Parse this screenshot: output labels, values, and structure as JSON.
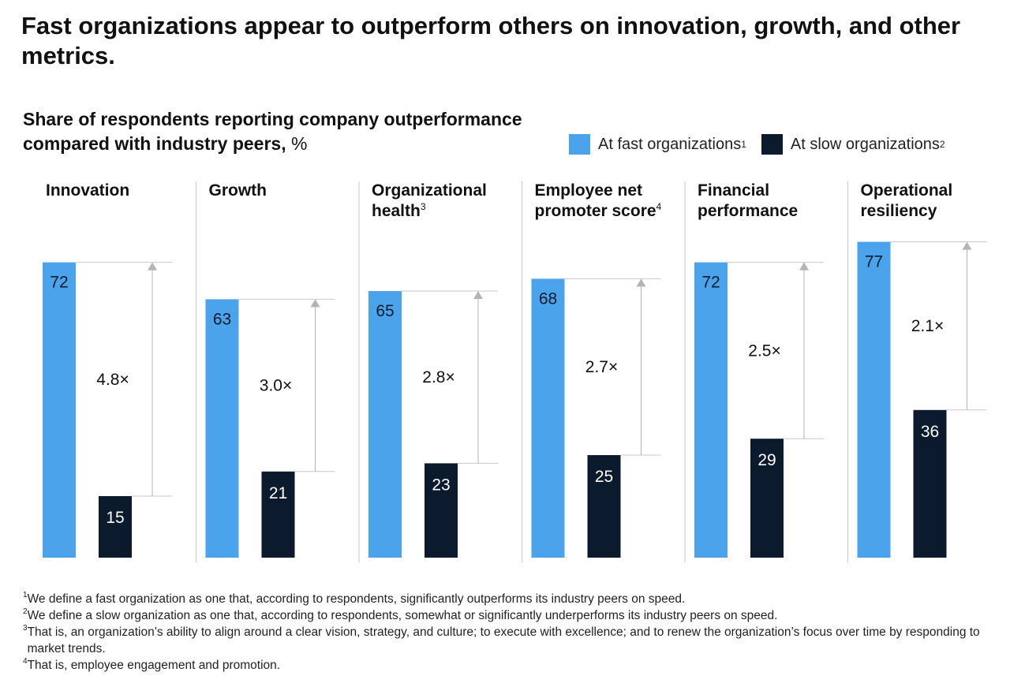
{
  "title": "Fast organizations appear to outperform others on innovation, growth, and other metrics.",
  "subtitle_bold": "Share of respondents reporting company outperformance compared with industry peers,",
  "subtitle_unit": " %",
  "legend": {
    "fast_label": "At fast organizations",
    "fast_sup": "1",
    "slow_label": "At slow organizations",
    "slow_sup": "2"
  },
  "colors": {
    "fast": "#4ba3eb",
    "slow": "#0c1a2e",
    "axis": "#c8c8c8",
    "arrow": "#b4b4b4"
  },
  "chart_data": {
    "type": "bar",
    "title": "Share of respondents reporting company outperformance compared with industry peers, %",
    "categories": [
      {
        "line1": "Innovation",
        "line2": "",
        "sup": ""
      },
      {
        "line1": "Growth",
        "line2": "",
        "sup": ""
      },
      {
        "line1": "Organizational",
        "line2": "health",
        "sup": "3"
      },
      {
        "line1": "Employee net",
        "line2": "promoter score",
        "sup": "4"
      },
      {
        "line1": "Financial",
        "line2": "performance",
        "sup": ""
      },
      {
        "line1": "Operational",
        "line2": "resiliency",
        "sup": ""
      }
    ],
    "series": [
      {
        "name": "At fast organizations",
        "values": [
          72,
          63,
          65,
          68,
          72,
          77
        ]
      },
      {
        "name": "At slow organizations",
        "values": [
          15,
          21,
          23,
          25,
          29,
          36
        ]
      }
    ],
    "ratios": [
      "4.8×",
      "3.0×",
      "2.8×",
      "2.7×",
      "2.5×",
      "2.1×"
    ],
    "ylim": [
      0,
      100
    ],
    "xlabel": "",
    "ylabel": ""
  },
  "footnotes": [
    {
      "num": "1",
      "text": "We define a fast organization as one that, according to respondents, significantly outperforms its industry peers on speed."
    },
    {
      "num": "2",
      "text": "We define a slow organization as one that, according to respondents, somewhat or significantly underperforms its industry peers on speed."
    },
    {
      "num": "3",
      "text": "That is, an organization’s ability to align around a clear vision, strategy, and culture; to execute with excellence; and to renew the organization’s focus over time by responding to market trends."
    },
    {
      "num": "4",
      "text": "That is, employee engagement and promotion."
    }
  ]
}
